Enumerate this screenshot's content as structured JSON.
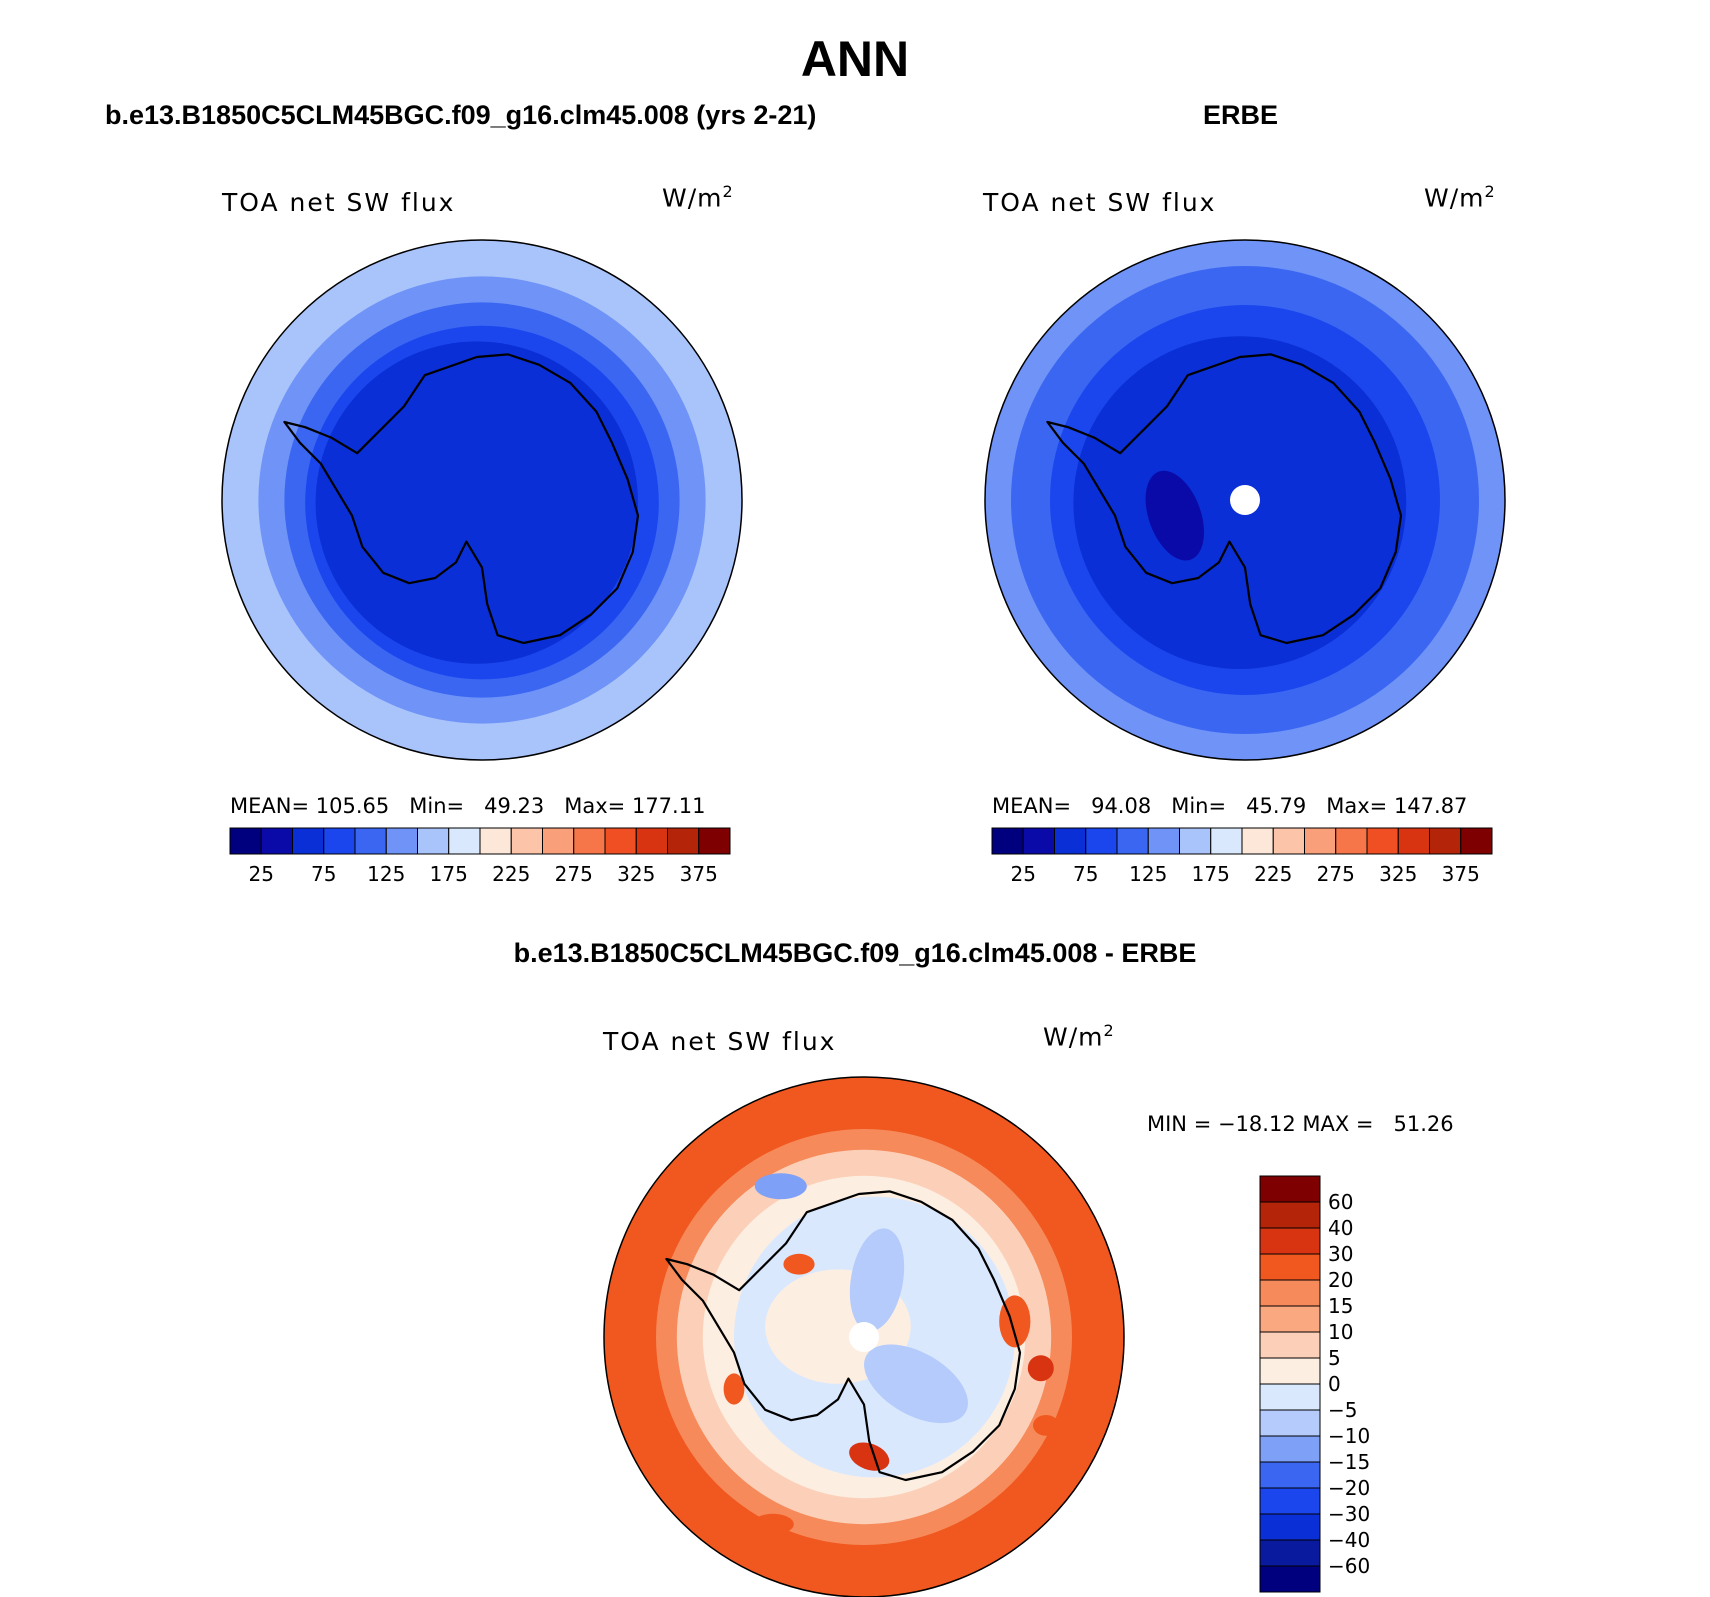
{
  "title": "ANN",
  "colors": {
    "seq": [
      "#00007f",
      "#0a0aa8",
      "#0a2fd6",
      "#1b46ee",
      "#3a66f2",
      "#6f93f7",
      "#a9c3fb",
      "#d9e8fd",
      "#fde7d8",
      "#fcc5aa",
      "#f9a07a",
      "#f6764a",
      "#f04f24",
      "#d83412",
      "#b42408",
      "#7e0000"
    ],
    "diff": [
      "#00007f",
      "#0a1a9e",
      "#0a2fd6",
      "#1b46ee",
      "#3a66f2",
      "#7ea0f7",
      "#b4cbfb",
      "#d9e8fd",
      "#fdeee2",
      "#fcd0b8",
      "#f9a880",
      "#f68a5a",
      "#f0581f",
      "#d83412",
      "#b42408",
      "#7e0000"
    ]
  },
  "panels": [
    {
      "header": "b.e13.B1850C5CLM45BGC.f09_g16.clm45.008 (yrs 2-21)",
      "field": "TOA net SW flux",
      "unit_base": "W/m",
      "unit_exp": "2",
      "stats": "MEAN= 105.65   Min=   49.23   Max= 177.11",
      "ticks": [
        "25",
        "75",
        "125",
        "175",
        "225",
        "275",
        "325",
        "375"
      ]
    },
    {
      "header": "ERBE",
      "field": "TOA net SW flux",
      "unit_base": "W/m",
      "unit_exp": "2",
      "stats": "MEAN=   94.08   Min=   45.79   Max= 147.87",
      "ticks": [
        "25",
        "75",
        "125",
        "175",
        "225",
        "275",
        "325",
        "375"
      ]
    }
  ],
  "diff": {
    "header": "b.e13.B1850C5CLM45BGC.f09_g16.clm45.008 - ERBE",
    "field": "TOA net SW flux",
    "unit_base": "W/m",
    "unit_exp": "2",
    "stats": "MIN = −18.12 MAX =   51.26",
    "ticks": [
      "60",
      "40",
      "30",
      "20",
      "15",
      "10",
      "5",
      "0",
      "−5",
      "−10",
      "−15",
      "−20",
      "−30",
      "−40",
      "−60"
    ]
  }
}
